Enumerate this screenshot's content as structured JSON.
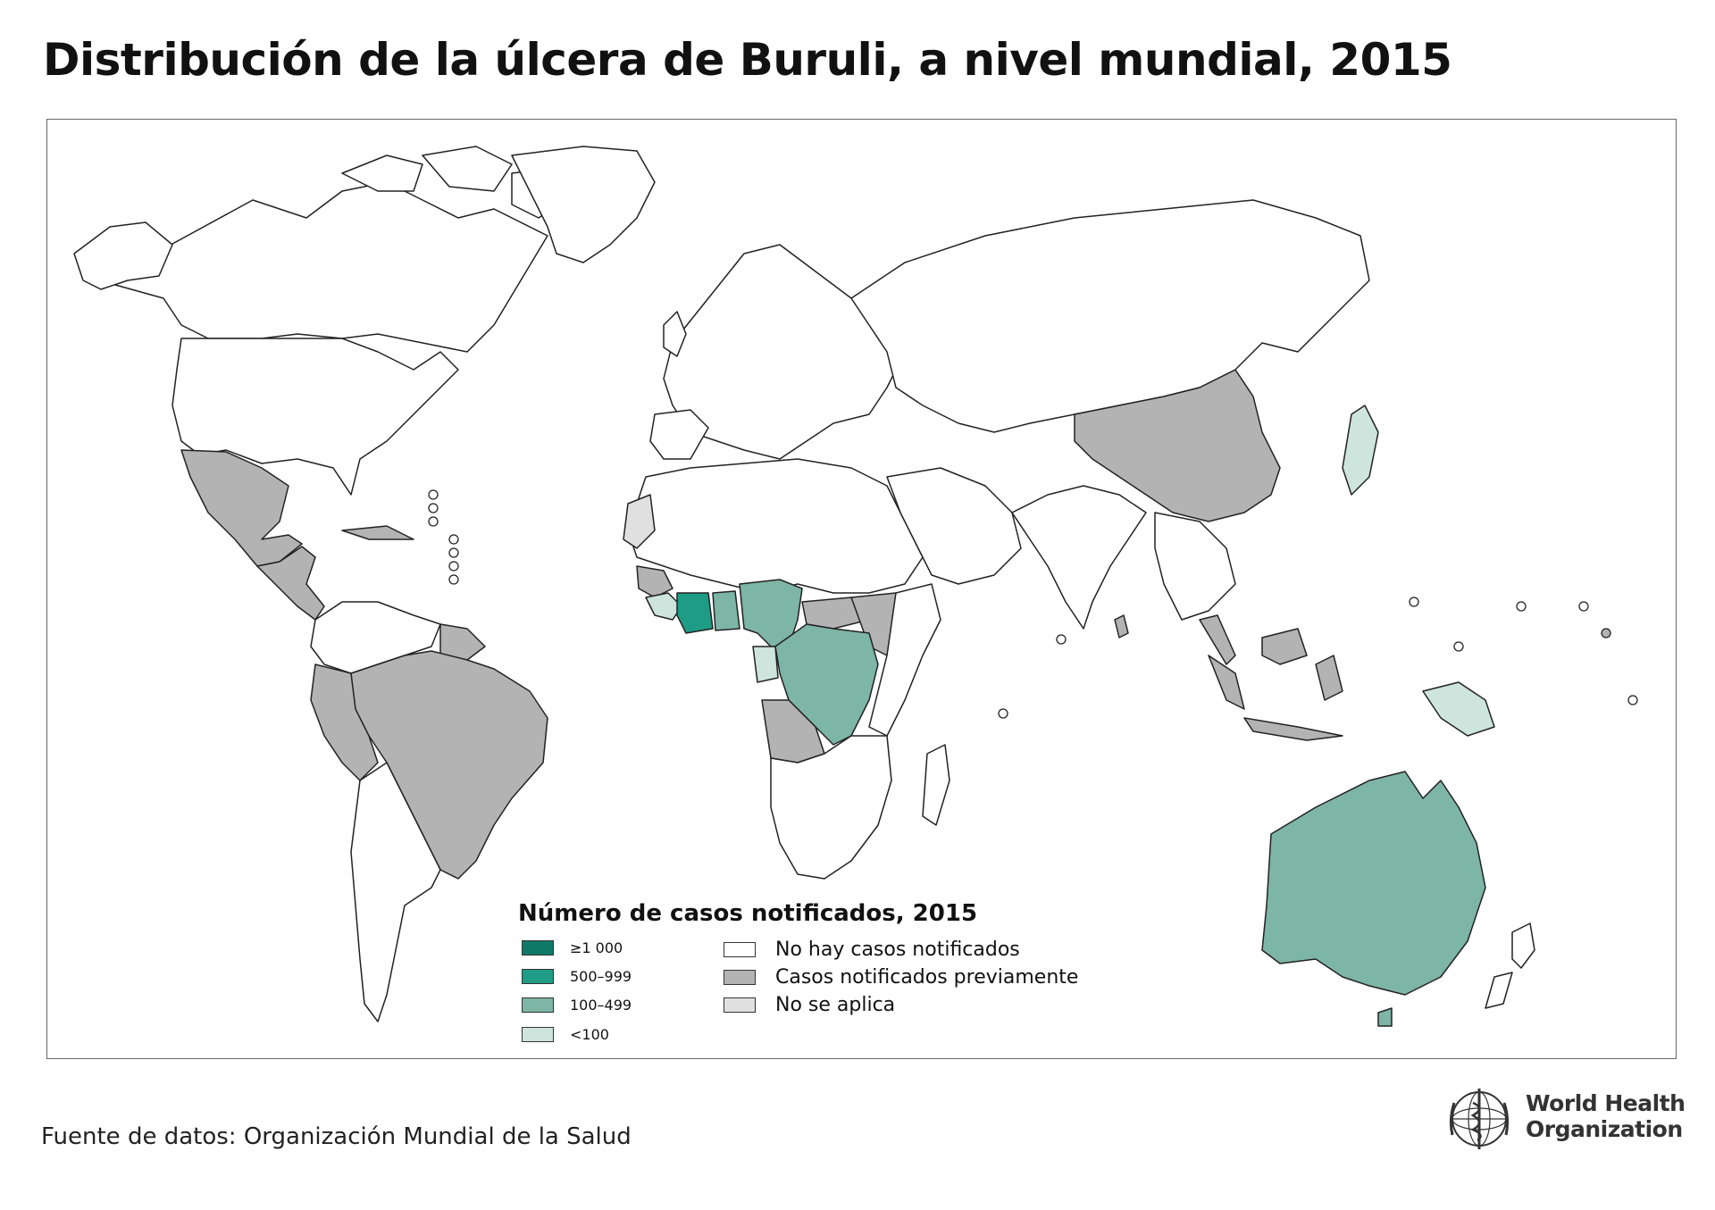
{
  "title": "Distribución de la úlcera de Buruli, a nivel mundial, 2015",
  "legend": {
    "title": "Número de casos notificados, 2015",
    "items_cases": [
      {
        "label": "≥1 000",
        "color": "#0f7a67"
      },
      {
        "label": "500–999",
        "color": "#1f9c86"
      },
      {
        "label": "100–499",
        "color": "#7db5a6"
      },
      {
        "label": "<100",
        "color": "#cde5dc"
      }
    ],
    "items_status": [
      {
        "label": "No hay casos notificados",
        "color": "#ffffff"
      },
      {
        "label": "Casos notificados previamente",
        "color": "#b3b3b3"
      },
      {
        "label": "No se aplica",
        "color": "#e0e0e0"
      }
    ]
  },
  "source": "Fuente de datos: Organización Mundial de la Salud",
  "logo": {
    "line1": "World Health",
    "line2": "Organization"
  },
  "map": {
    "colors": {
      "border": "#222222",
      "ocean": "#ffffff"
    },
    "regions": [
      {
        "name": "Canada",
        "category": "none"
      },
      {
        "name": "United States",
        "category": "none"
      },
      {
        "name": "Mexico",
        "category": "previous"
      },
      {
        "name": "Central America",
        "category": "previous"
      },
      {
        "name": "Brazil",
        "category": "previous"
      },
      {
        "name": "Peru",
        "category": "previous"
      },
      {
        "name": "French Guiana",
        "category": "previous"
      },
      {
        "name": "Suriname",
        "category": "previous"
      },
      {
        "name": "Côte d'Ivoire",
        "category": "500-999"
      },
      {
        "name": "Ghana",
        "category": "100-499"
      },
      {
        "name": "Benin",
        "category": "100-499"
      },
      {
        "name": "Nigeria",
        "category": "100-499"
      },
      {
        "name": "Cameroon",
        "category": "100-499"
      },
      {
        "name": "Gabon",
        "category": "<100"
      },
      {
        "name": "Liberia",
        "category": "<100"
      },
      {
        "name": "Democratic Republic of the Congo",
        "category": "100-499"
      },
      {
        "name": "Angola",
        "category": "previous"
      },
      {
        "name": "Sierra Leone",
        "category": "previous"
      },
      {
        "name": "Guinea",
        "category": "previous"
      },
      {
        "name": "Togo",
        "category": "100-499"
      },
      {
        "name": "Central African Republic",
        "category": "previous"
      },
      {
        "name": "South Sudan",
        "category": "previous"
      },
      {
        "name": "Uganda",
        "category": "previous"
      },
      {
        "name": "Malawi",
        "category": "previous"
      },
      {
        "name": "China",
        "category": "previous"
      },
      {
        "name": "Japan",
        "category": "<100"
      },
      {
        "name": "Sri Lanka",
        "category": "previous"
      },
      {
        "name": "Malaysia",
        "category": "previous"
      },
      {
        "name": "Indonesia",
        "category": "previous"
      },
      {
        "name": "Papua New Guinea",
        "category": "<100"
      },
      {
        "name": "Australia",
        "category": "100-499"
      },
      {
        "name": "Western Sahara",
        "category": "na"
      }
    ]
  }
}
